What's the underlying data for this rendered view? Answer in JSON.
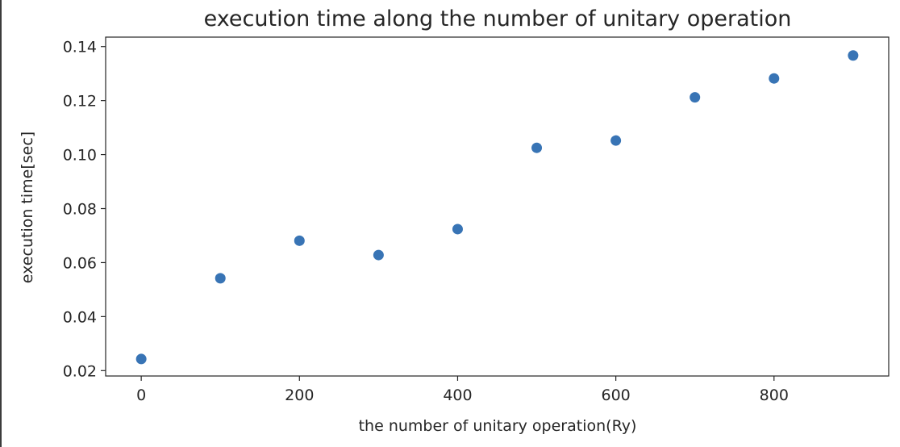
{
  "chart_data": {
    "type": "scatter",
    "title": "execution time along the number of unitary operation",
    "xlabel": "the number of unitary operation(Ry)",
    "ylabel": "execution time[sec]",
    "x": [
      0,
      100,
      200,
      300,
      400,
      500,
      600,
      700,
      800,
      900
    ],
    "y": [
      0.0243,
      0.0542,
      0.0681,
      0.0628,
      0.0724,
      0.1025,
      0.1052,
      0.1212,
      0.1282,
      0.1367
    ],
    "xlim": [
      -45,
      945
    ],
    "ylim": [
      0.018,
      0.1435
    ],
    "xticks": [
      0,
      200,
      400,
      600,
      800
    ],
    "yticks": [
      0.02,
      0.04,
      0.06,
      0.08,
      0.1,
      0.12,
      0.14
    ],
    "xtick_labels": [
      "0",
      "200",
      "400",
      "600",
      "800"
    ],
    "ytick_labels": [
      "0.02",
      "0.04",
      "0.06",
      "0.08",
      "0.10",
      "0.12",
      "0.14"
    ],
    "grid": false,
    "legend": "none",
    "marker_color": "#3874b5"
  }
}
